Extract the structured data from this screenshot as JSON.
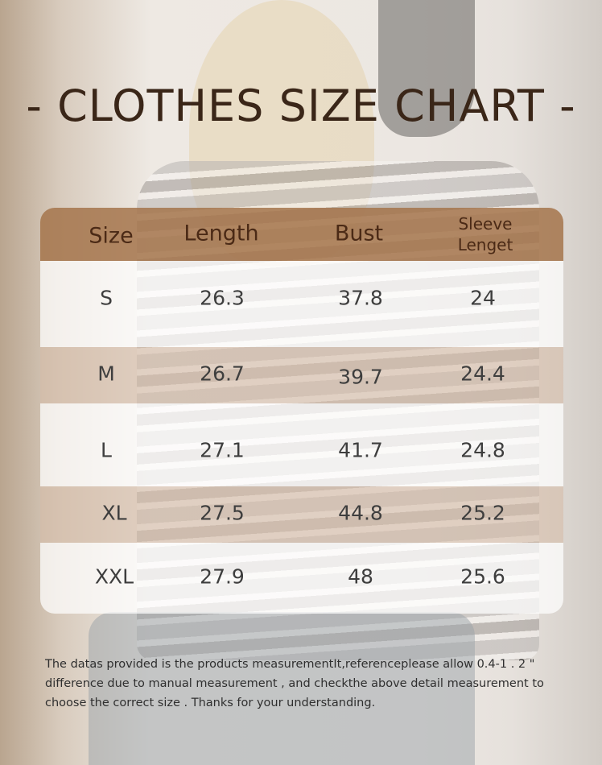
{
  "title": "- CLOTHES SIZE CHART -",
  "table": {
    "headers": [
      "Size",
      "Length",
      "Bust",
      "Sleeve Lenget"
    ],
    "header_line1": "Sleeve",
    "header_line2": "Lenget",
    "rows": [
      [
        "S",
        "26.3",
        "37.8",
        "24"
      ],
      [
        "M",
        "26.7",
        "39.7",
        "24.4"
      ],
      [
        "L",
        "27.1",
        "41.7",
        "24.8"
      ],
      [
        "XL",
        "27.5",
        "44.8",
        "25.2"
      ],
      [
        "XXL",
        "27.9",
        "48",
        "25.6"
      ]
    ]
  },
  "note": "The datas provided is the products measurementIt,referenceplease allow 0.4-1 . 2 \" difference due to manual measurement , and checkthe above detail measurement to choose the correct size . Thanks for your understanding.",
  "colors": {
    "header_bg": "#a5744b",
    "title": "#3a2618",
    "band": "#d6bca8"
  }
}
